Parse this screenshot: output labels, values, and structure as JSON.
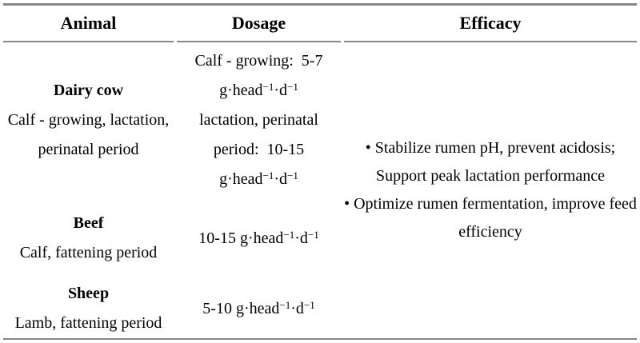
{
  "page": {
    "background_color": "#ffffff",
    "text_color": "#000000",
    "rule_color": "#878787"
  },
  "table": {
    "headers": [
      {
        "id": "animal",
        "label": "Animal"
      },
      {
        "id": "dosage",
        "label": "Dosage"
      },
      {
        "id": "efficacy",
        "label": "Efficacy"
      }
    ],
    "rows": [
      {
        "animal_name": "Dairy cow",
        "animal_detail_lines": [
          "Calf - growing, lactation,",
          "perinatal period"
        ],
        "dosage_lines": [
          [
            {
              "t": "Calf - growing:  5-7"
            }
          ],
          [
            {
              "t": "g·head"
            },
            {
              "sup": "−1"
            },
            {
              "t": "·d"
            },
            {
              "sup": "−1"
            }
          ],
          [
            {
              "t": "lactation, perinatal"
            }
          ],
          [
            {
              "t": "period:  10-15"
            }
          ],
          [
            {
              "t": "g·head"
            },
            {
              "sup": "−1"
            },
            {
              "t": "·d"
            },
            {
              "sup": "−1"
            }
          ]
        ]
      },
      {
        "animal_name": "Beef",
        "animal_detail_lines": [
          "Calf, fattening period"
        ],
        "dosage_lines": [
          [
            {
              "t": "10-15 g·head"
            },
            {
              "sup": "−1"
            },
            {
              "t": "·d"
            },
            {
              "sup": "−1"
            }
          ]
        ]
      },
      {
        "animal_name": "Sheep",
        "animal_detail_lines": [
          "Lamb, fattening period"
        ],
        "dosage_lines": [
          [
            {
              "t": "5-10 g·head"
            },
            {
              "sup": "−1"
            },
            {
              "t": "·d"
            },
            {
              "sup": "−1"
            }
          ]
        ]
      }
    ],
    "efficacy_lines": [
      "• Stabilize rumen pH, prevent acidosis;",
      "Support peak lactation performance",
      "• Optimize rumen fermentation, improve feed",
      "efficiency"
    ]
  }
}
